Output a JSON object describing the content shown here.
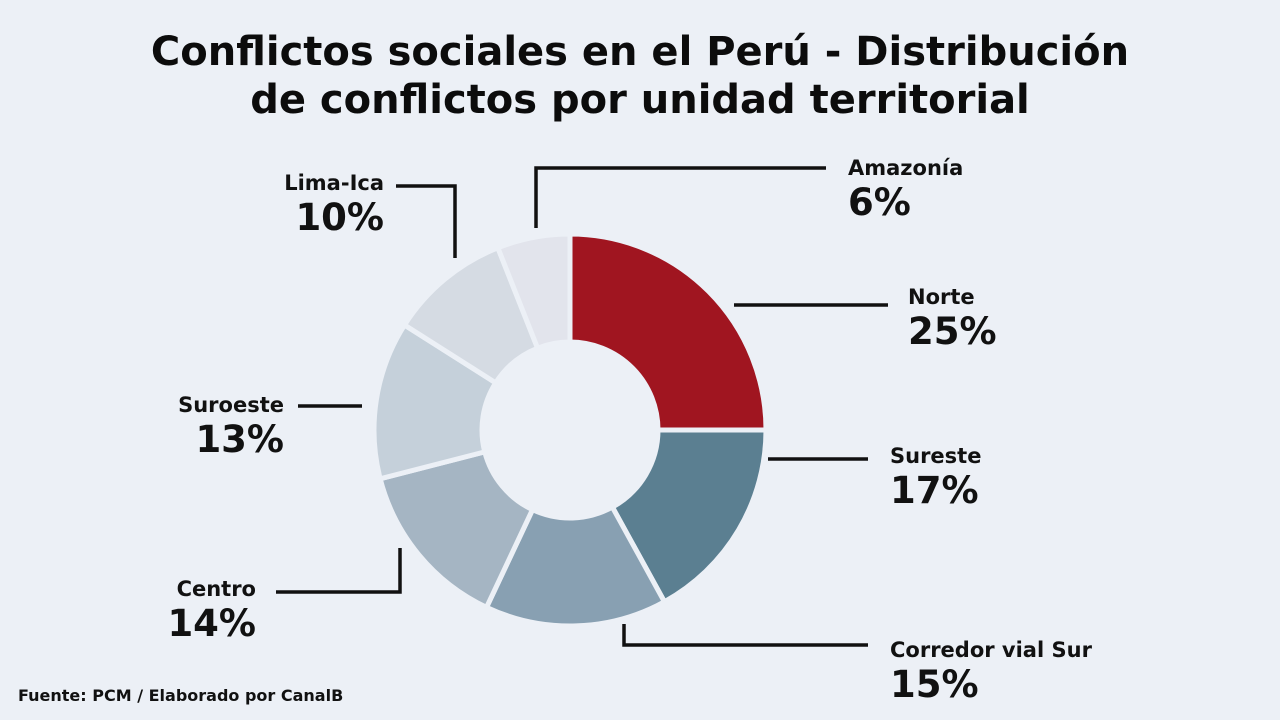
{
  "title": {
    "line1": "Conflictos sociales en el Perú - Distribución",
    "line2": "de conflictos por unidad territorial"
  },
  "source": "Fuente: PCM / Elaborado por CanalB",
  "chart_data": {
    "type": "pie",
    "donut": true,
    "title": "Conflictos sociales en el Perú - Distribución de conflictos por unidad territorial",
    "slices": [
      {
        "label": "Norte",
        "value": 25,
        "value_label": "25%",
        "color": "#a01520"
      },
      {
        "label": "Sureste",
        "value": 17,
        "value_label": "17%",
        "color": "#5b7f91"
      },
      {
        "label": "Corredor vial Sur",
        "value": 15,
        "value_label": "15%",
        "color": "#88a0b2"
      },
      {
        "label": "Centro",
        "value": 14,
        "value_label": "14%",
        "color": "#a5b5c3"
      },
      {
        "label": "Suroeste",
        "value": 13,
        "value_label": "13%",
        "color": "#c5d0da"
      },
      {
        "label": "Lima-Ica",
        "value": 10,
        "value_label": "10%",
        "color": "#d5dbe3"
      },
      {
        "label": "Amazonía",
        "value": 6,
        "value_label": "6%",
        "color": "#e2e4ec"
      }
    ]
  }
}
